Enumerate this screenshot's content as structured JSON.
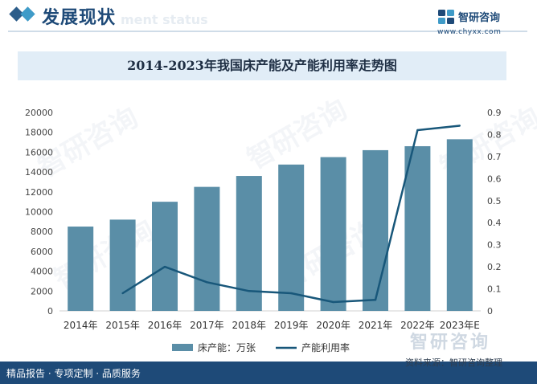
{
  "header": {
    "title": "发展现状",
    "subtitle": "ment status"
  },
  "brand": {
    "name": "智研咨询",
    "url": "www.chyxx.com"
  },
  "watermark": {
    "text": "智研咨询"
  },
  "chart_data": {
    "type": "bar",
    "title": "2014-2023年我国床产能及产能利用率走势图",
    "categories": [
      "2014年",
      "2015年",
      "2016年",
      "2017年",
      "2018年",
      "2019年",
      "2020年",
      "2021年",
      "2022年",
      "2023年E"
    ],
    "series": [
      {
        "name": "床产能：万张",
        "type": "bar",
        "axis": "left",
        "color": "#5a8ea7",
        "values": [
          8500,
          9200,
          11000,
          12500,
          13600,
          14750,
          15500,
          16200,
          16600,
          17300
        ]
      },
      {
        "name": "产能利用率",
        "type": "line",
        "axis": "right",
        "color": "#18577a",
        "values": [
          null,
          0.08,
          0.2,
          0.13,
          0.09,
          0.08,
          0.04,
          0.05,
          0.82,
          0.84
        ]
      }
    ],
    "y_left": {
      "min": 0,
      "max": 20000,
      "step": 2000,
      "ticks": [
        "0",
        "2000",
        "4000",
        "6000",
        "8000",
        "10000",
        "12000",
        "14000",
        "16000",
        "18000",
        "20000"
      ]
    },
    "y_right": {
      "min": 0,
      "max": 0.9,
      "step": 0.1,
      "ticks": [
        "0",
        "0.1",
        "0.2",
        "0.3",
        "0.4",
        "0.5",
        "0.6",
        "0.7",
        "0.8",
        "0.9"
      ]
    },
    "legend_position": "bottom-center",
    "grid": false
  },
  "footer": {
    "left": "精品报告 · 专项定制 · 品质服务",
    "source": "资料来源：智研咨询整理"
  }
}
